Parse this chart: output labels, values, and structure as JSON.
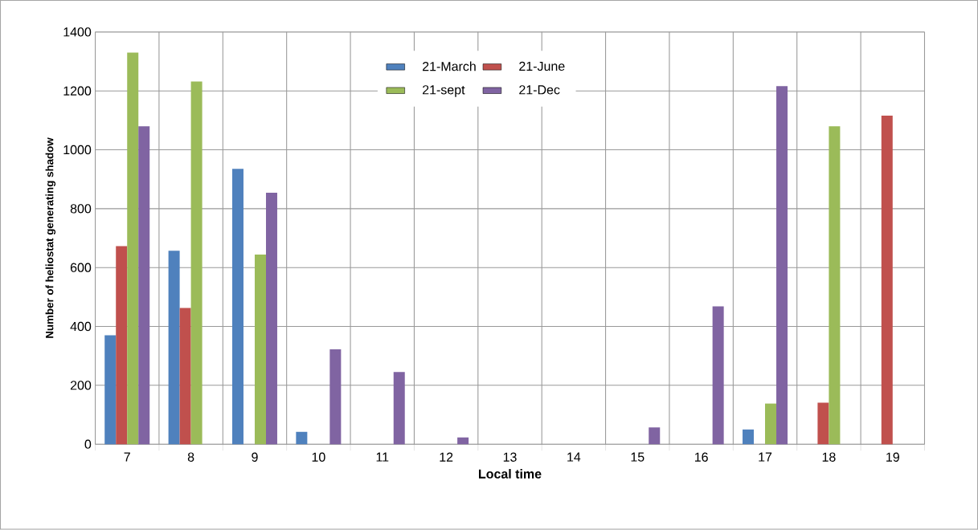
{
  "chart_data": {
    "type": "bar",
    "xlabel": "Local time",
    "ylabel": "Number of heliostat  generating shadow",
    "categories": [
      "7",
      "8",
      "9",
      "10",
      "11",
      "12",
      "13",
      "14",
      "15",
      "16",
      "17",
      "18",
      "19"
    ],
    "series": [
      {
        "name": "21-March",
        "color": "#4f81bd",
        "values": [
          370,
          657,
          935,
          42,
          0,
          0,
          0,
          0,
          0,
          0,
          50,
          0,
          0
        ]
      },
      {
        "name": "21-June",
        "color": "#c0504d",
        "values": [
          673,
          463,
          0,
          0,
          0,
          0,
          0,
          0,
          0,
          0,
          0,
          141,
          1116
        ]
      },
      {
        "name": "21-sept",
        "color": "#9bbb59",
        "values": [
          1330,
          1232,
          644,
          0,
          0,
          0,
          0,
          0,
          0,
          0,
          138,
          1080,
          0
        ]
      },
      {
        "name": "21-Dec",
        "color": "#8064a2",
        "values": [
          1080,
          0,
          854,
          322,
          245,
          23,
          null,
          null,
          57,
          468,
          1216,
          0,
          0
        ]
      }
    ],
    "ylim": [
      0,
      1400
    ],
    "yticks": [
      0,
      200,
      400,
      600,
      800,
      1000,
      1200,
      1400
    ],
    "grid": true,
    "legend": "top"
  }
}
